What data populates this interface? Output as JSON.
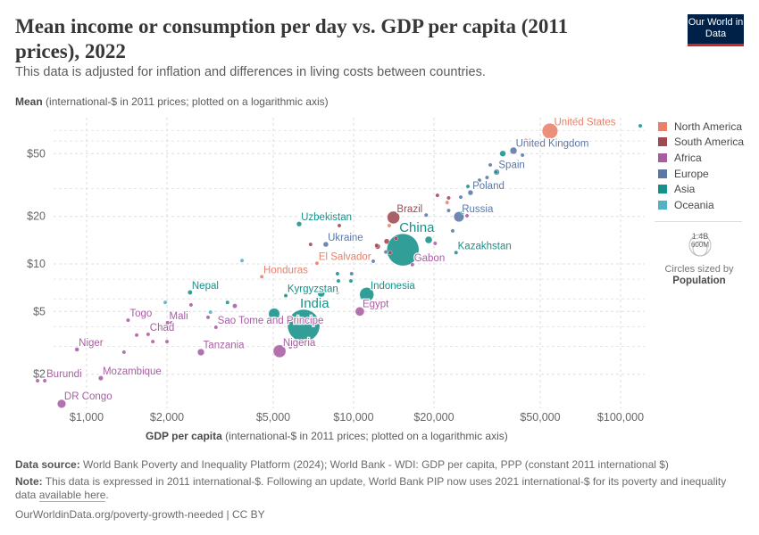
{
  "header": {
    "title": "Mean income or consumption per day vs. GDP per capita (2011 prices), 2022",
    "subtitle": "This data is adjusted for inflation and differences in living costs between countries.",
    "logo": "Our World in Data"
  },
  "chart_data": {
    "type": "scatter",
    "title": "Mean income or consumption per day vs. GDP per capita (2011 prices), 2022",
    "ylabel_bold": "Mean",
    "ylabel_rest": "(international-$ in 2011 prices; plotted on a logarithmic axis)",
    "xlabel_bold": "GDP per capita",
    "xlabel_rest": "(international-$ in 2011 prices; plotted on a logarithmic axis)",
    "x_scale": "log",
    "y_scale": "log",
    "xlim": [
      620,
      125000
    ],
    "ylim": [
      1.2,
      95
    ],
    "grid": true,
    "x_ticks": [
      {
        "v": 1000,
        "label": "$1,000"
      },
      {
        "v": 2000,
        "label": "$2,000"
      },
      {
        "v": 5000,
        "label": "$5,000"
      },
      {
        "v": 10000,
        "label": "$10,000"
      },
      {
        "v": 20000,
        "label": "$20,000"
      },
      {
        "v": 50000,
        "label": "$50,000"
      },
      {
        "v": 100000,
        "label": "$100,000"
      }
    ],
    "y_ticks": [
      {
        "v": 2,
        "label": "$2"
      },
      {
        "v": 5,
        "label": "$5"
      },
      {
        "v": 10,
        "label": "$10"
      },
      {
        "v": 20,
        "label": "$20"
      },
      {
        "v": 50,
        "label": "$50"
      }
    ],
    "legend_position": "right",
    "regions": [
      {
        "name": "North America",
        "color": "#e9806a"
      },
      {
        "name": "South America",
        "color": "#9e4a52"
      },
      {
        "name": "Africa",
        "color": "#a85da3"
      },
      {
        "name": "Europe",
        "color": "#5b77a7"
      },
      {
        "name": "Asia",
        "color": "#16918a"
      },
      {
        "name": "Oceania",
        "color": "#53b2c4"
      }
    ],
    "size_legend": {
      "title": "Circles sized by",
      "variable": "Population",
      "values": [
        "1.4B",
        "600M"
      ]
    },
    "points": [
      {
        "name": "United States",
        "region": "North America",
        "gdp": 54400,
        "mean": 69.5,
        "pop": 333
      },
      {
        "name": "United Kingdom",
        "region": "Europe",
        "gdp": 39700,
        "mean": 52.2,
        "pop": 67
      },
      {
        "name": "Spain",
        "region": "Europe",
        "gdp": 34300,
        "mean": 38.2,
        "pop": 48
      },
      {
        "name": "Poland",
        "region": "Europe",
        "gdp": 27400,
        "mean": 28.3,
        "pop": 38
      },
      {
        "name": "Russia",
        "region": "Europe",
        "gdp": 24800,
        "mean": 19.9,
        "pop": 144
      },
      {
        "name": "Brazil",
        "region": "South America",
        "gdp": 14100,
        "mean": 19.7,
        "pop": 215
      },
      {
        "name": "China",
        "region": "Asia",
        "gdp": 15300,
        "mean": 12.3,
        "pop": 1410
      },
      {
        "name": "Kazakhstan",
        "region": "Asia",
        "gdp": 24200,
        "mean": 11.8,
        "pop": 19
      },
      {
        "name": "Gabon",
        "region": "Africa",
        "gdp": 16600,
        "mean": 9.9,
        "pop": 2.4
      },
      {
        "name": "Uzbekistan",
        "region": "Asia",
        "gdp": 6250,
        "mean": 17.9,
        "pop": 35
      },
      {
        "name": "Ukraine",
        "region": "Europe",
        "gdp": 7870,
        "mean": 13.3,
        "pop": 38
      },
      {
        "name": "El Salvador",
        "region": "North America",
        "gdp": 7290,
        "mean": 10.1,
        "pop": 6.3
      },
      {
        "name": "Honduras",
        "region": "North America",
        "gdp": 4530,
        "mean": 8.3,
        "pop": 10
      },
      {
        "name": "Indonesia",
        "region": "Asia",
        "gdp": 11200,
        "mean": 6.4,
        "pop": 276
      },
      {
        "name": "Egypt",
        "region": "Africa",
        "gdp": 10550,
        "mean": 5.0,
        "pop": 111
      },
      {
        "name": "India",
        "region": "Asia",
        "gdp": 6500,
        "mean": 4.07,
        "pop": 1420
      },
      {
        "name": "Nigeria",
        "region": "Africa",
        "gdp": 5280,
        "mean": 2.8,
        "pop": 219
      },
      {
        "name": "Nepal",
        "region": "Asia",
        "gdp": 2440,
        "mean": 6.6,
        "pop": 30
      },
      {
        "name": "Kyrgyzstan",
        "region": "Asia",
        "gdp": 5570,
        "mean": 6.3,
        "pop": 7
      },
      {
        "name": "Sao Tome and Principe",
        "region": "Africa",
        "gdp": 3050,
        "mean": 3.97,
        "pop": 0.2
      },
      {
        "name": "Tanzania",
        "region": "Africa",
        "gdp": 2680,
        "mean": 2.76,
        "pop": 65
      },
      {
        "name": "Togo",
        "region": "Africa",
        "gdp": 1430,
        "mean": 4.4,
        "pop": 9
      },
      {
        "name": "Mali",
        "region": "Africa",
        "gdp": 2010,
        "mean": 4.24,
        "pop": 22
      },
      {
        "name": "Chad",
        "region": "Africa",
        "gdp": 1700,
        "mean": 3.58,
        "pop": 18
      },
      {
        "name": "Niger",
        "region": "Africa",
        "gdp": 920,
        "mean": 2.87,
        "pop": 26
      },
      {
        "name": "Burundi",
        "region": "Africa",
        "gdp": 697,
        "mean": 1.82,
        "pop": 13
      },
      {
        "name": "Mozambique",
        "region": "Africa",
        "gdp": 1130,
        "mean": 1.89,
        "pop": 33
      },
      {
        "name": "DR Congo",
        "region": "Africa",
        "gdp": 806,
        "mean": 1.3,
        "pop": 99
      },
      {
        "name": "",
        "region": "Asia",
        "gdp": 68000,
        "mean": 82,
        "pop": 3
      },
      {
        "name": "",
        "region": "Asia",
        "gdp": 118500,
        "mean": 75,
        "pop": 3
      },
      {
        "name": "",
        "region": "North America",
        "gdp": 44200,
        "mean": 60,
        "pop": 38
      },
      {
        "name": "",
        "region": "Asia",
        "gdp": 36200,
        "mean": 50,
        "pop": 50
      },
      {
        "name": "",
        "region": "Europe",
        "gdp": 42900,
        "mean": 48.9,
        "pop": 10
      },
      {
        "name": "",
        "region": "Europe",
        "gdp": 32500,
        "mean": 42.4,
        "pop": 10
      },
      {
        "name": "",
        "region": "Asia",
        "gdp": 34100,
        "mean": 38.2,
        "pop": 10
      },
      {
        "name": "",
        "region": "Europe",
        "gdp": 31600,
        "mean": 35.3,
        "pop": 10
      },
      {
        "name": "",
        "region": "Europe",
        "gdp": 29600,
        "mean": 33.9,
        "pop": 10
      },
      {
        "name": "",
        "region": "Asia",
        "gdp": 26800,
        "mean": 31.0,
        "pop": 10
      },
      {
        "name": "",
        "region": "Europe",
        "gdp": 25200,
        "mean": 26.5,
        "pop": 10
      },
      {
        "name": "",
        "region": "South America",
        "gdp": 20600,
        "mean": 27.2,
        "pop": 10
      },
      {
        "name": "",
        "region": "South America",
        "gdp": 22700,
        "mean": 26.2,
        "pop": 10
      },
      {
        "name": "",
        "region": "North America",
        "gdp": 22400,
        "mean": 24.5,
        "pop": 10
      },
      {
        "name": "",
        "region": "Europe",
        "gdp": 22700,
        "mean": 21.8,
        "pop": 10
      },
      {
        "name": "",
        "region": "Europe",
        "gdp": 18700,
        "mean": 20.4,
        "pop": 10
      },
      {
        "name": "",
        "region": "Asia",
        "gdp": 25600,
        "mean": 21.2,
        "pop": 10
      },
      {
        "name": "",
        "region": "Africa",
        "gdp": 26600,
        "mean": 20.2,
        "pop": 6
      },
      {
        "name": "",
        "region": "North America",
        "gdp": 13600,
        "mean": 17.5,
        "pop": 10
      },
      {
        "name": "",
        "region": "Europe",
        "gdp": 23500,
        "mean": 16.2,
        "pop": 10
      },
      {
        "name": "",
        "region": "Asia",
        "gdp": 19100,
        "mean": 14.2,
        "pop": 70
      },
      {
        "name": "",
        "region": "Africa",
        "gdp": 20200,
        "mean": 13.5,
        "pop": 10
      },
      {
        "name": "",
        "region": "South America",
        "gdp": 13300,
        "mean": 13.9,
        "pop": 39
      },
      {
        "name": "",
        "region": "South America",
        "gdp": 12200,
        "mean": 13.1,
        "pop": 20
      },
      {
        "name": "",
        "region": "South America",
        "gdp": 14400,
        "mean": 14.5,
        "pop": 10
      },
      {
        "name": "",
        "region": "Europe",
        "gdp": 13200,
        "mean": 11.9,
        "pop": 10
      },
      {
        "name": "",
        "region": "South America",
        "gdp": 13700,
        "mean": 11.8,
        "pop": 10
      },
      {
        "name": "",
        "region": "South America",
        "gdp": 8840,
        "mean": 17.5,
        "pop": 10
      },
      {
        "name": "",
        "region": "South America",
        "gdp": 6900,
        "mean": 13.3,
        "pop": 10
      },
      {
        "name": "",
        "region": "South America",
        "gdp": 12300,
        "mean": 12.9,
        "pop": 39
      },
      {
        "name": "",
        "region": "Oceania",
        "gdp": 3820,
        "mean": 10.5,
        "pop": 10
      },
      {
        "name": "",
        "region": "Europe",
        "gdp": 11850,
        "mean": 10.4,
        "pop": 10
      },
      {
        "name": "",
        "region": "Asia",
        "gdp": 8700,
        "mean": 8.67,
        "pop": 10
      },
      {
        "name": "",
        "region": "Europe",
        "gdp": 9830,
        "mean": 8.67,
        "pop": 10
      },
      {
        "name": "",
        "region": "Asia",
        "gdp": 8770,
        "mean": 7.8,
        "pop": 10
      },
      {
        "name": "",
        "region": "Asia",
        "gdp": 9770,
        "mean": 7.8,
        "pop": 10
      },
      {
        "name": "",
        "region": "Oceania",
        "gdp": 8700,
        "mean": 6.6,
        "pop": 10
      },
      {
        "name": "",
        "region": "Asia",
        "gdp": 7560,
        "mean": 6.5,
        "pop": 70
      },
      {
        "name": "",
        "region": "Asia",
        "gdp": 5040,
        "mean": 4.83,
        "pop": 170
      },
      {
        "name": "",
        "region": "Africa",
        "gdp": 3590,
        "mean": 5.42,
        "pop": 30
      },
      {
        "name": "",
        "region": "Asia",
        "gdp": 3370,
        "mean": 5.7,
        "pop": 10
      },
      {
        "name": "",
        "region": "Oceania",
        "gdp": 2910,
        "mean": 4.95,
        "pop": 10
      },
      {
        "name": "",
        "region": "Africa",
        "gdp": 2850,
        "mean": 4.59,
        "pop": 10
      },
      {
        "name": "",
        "region": "Africa",
        "gdp": 2460,
        "mean": 5.5,
        "pop": 10
      },
      {
        "name": "",
        "region": "Oceania",
        "gdp": 1970,
        "mean": 5.7,
        "pop": 10
      },
      {
        "name": "",
        "region": "Africa",
        "gdp": 2080,
        "mean": 4.24,
        "pop": 10
      },
      {
        "name": "",
        "region": "Africa",
        "gdp": 1900,
        "mean": 3.92,
        "pop": 10
      },
      {
        "name": "",
        "region": "Africa",
        "gdp": 1540,
        "mean": 3.54,
        "pop": 10
      },
      {
        "name": "",
        "region": "Africa",
        "gdp": 1770,
        "mean": 3.22,
        "pop": 10
      },
      {
        "name": "",
        "region": "Africa",
        "gdp": 2000,
        "mean": 3.22,
        "pop": 10
      },
      {
        "name": "",
        "region": "Africa",
        "gdp": 1380,
        "mean": 2.76,
        "pop": 10
      },
      {
        "name": "",
        "region": "Africa",
        "gdp": 5790,
        "mean": 2.98,
        "pop": 10
      },
      {
        "name": "",
        "region": "Africa",
        "gdp": 655,
        "mean": 1.82,
        "pop": 10
      }
    ]
  },
  "footer": {
    "source_label": "Data source:",
    "source_text": "World Bank Poverty and Inequality Platform (2024); World Bank - WDI: GDP per capita, PPP (constant 2011 international $)",
    "note_label": "Note:",
    "note_text": "This data is expressed in 2011 international-$. Following an update, World Bank PIP now uses 2021 international-$ for its poverty and inequality data",
    "note_link": "available here",
    "note_end": ".",
    "url": "OurWorldinData.org/poverty-growth-needed | CC BY"
  }
}
